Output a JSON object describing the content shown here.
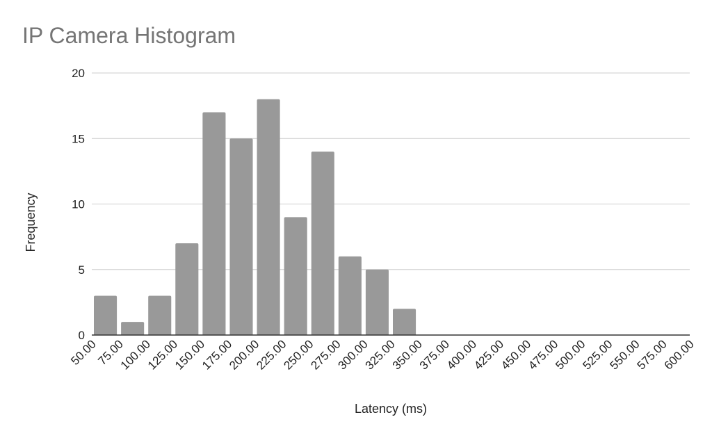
{
  "chart_data": {
    "type": "bar",
    "title": "IP Camera Histogram",
    "xlabel": "Latency (ms)",
    "ylabel": "Frequency",
    "ylim": [
      0,
      20
    ],
    "yticks": [
      "0",
      "5",
      "10",
      "15",
      "20"
    ],
    "xticks": [
      "50.00",
      "75.00",
      "100.00",
      "125.00",
      "150.00",
      "175.00",
      "200.00",
      "225.00",
      "250.00",
      "275.00",
      "300.00",
      "325.00",
      "350.00",
      "375.00",
      "400.00",
      "425.00",
      "450.00",
      "475.00",
      "500.00",
      "525.00",
      "550.00",
      "575.00",
      "600.00"
    ],
    "bins": [
      [
        50,
        75
      ],
      [
        75,
        100
      ],
      [
        100,
        125
      ],
      [
        125,
        150
      ],
      [
        150,
        175
      ],
      [
        175,
        200
      ],
      [
        200,
        225
      ],
      [
        225,
        250
      ],
      [
        250,
        275
      ],
      [
        275,
        300
      ],
      [
        300,
        325
      ],
      [
        325,
        350
      ]
    ],
    "values": [
      3,
      1,
      3,
      7,
      17,
      15,
      18,
      9,
      14,
      6,
      5,
      2
    ],
    "grid": true,
    "bar_color": "#999999",
    "grid_color": "#cccccc"
  }
}
